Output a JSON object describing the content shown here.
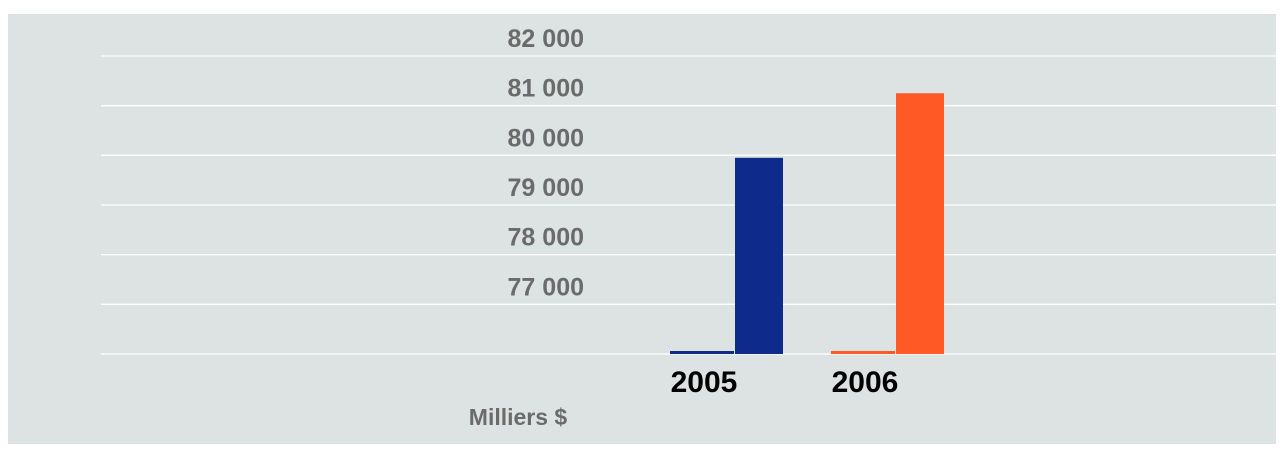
{
  "chart_data": {
    "type": "bar",
    "categories": [
      "2005",
      "2006"
    ],
    "values": [
      79950,
      81250
    ],
    "ylim": [
      76000,
      82000
    ],
    "yticks": [
      77000,
      78000,
      79000,
      80000,
      81000,
      82000
    ],
    "ytick_labels": [
      "77 000",
      "78 000",
      "79 000",
      "80 000",
      "81 000",
      "82 000"
    ],
    "unit_label": "Milliers $",
    "grid": true,
    "colors": [
      "#0e2b8c",
      "#ff5a26"
    ],
    "background": "#dde3e2",
    "gridline_color": "#ffffff",
    "title": "",
    "xlabel": "",
    "ylabel": ""
  }
}
